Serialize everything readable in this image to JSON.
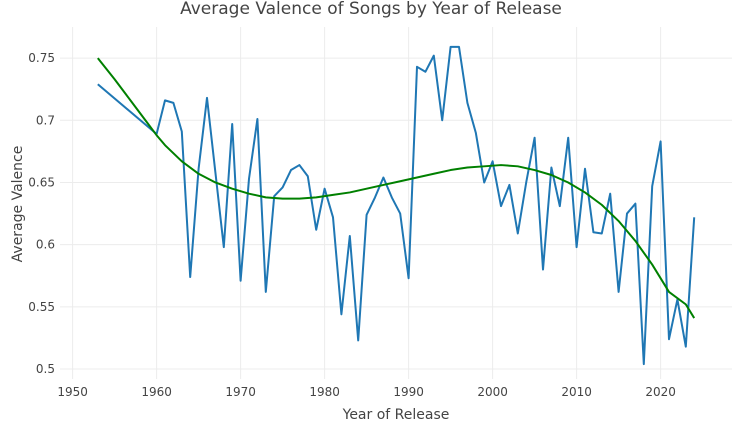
{
  "chart_data": {
    "type": "line",
    "title": "Average Valence of Songs by Year of Release",
    "xlabel": "Year of Release",
    "ylabel": "Average Valence",
    "xlim": [
      1948.5,
      2028.5
    ],
    "ylim": [
      0.492,
      0.775
    ],
    "x_ticks": [
      1950,
      1960,
      1970,
      1980,
      1990,
      2000,
      2010,
      2020
    ],
    "y_ticks": [
      0.5,
      0.55,
      0.6,
      0.65,
      0.7,
      0.75
    ],
    "y_tick_labels": [
      "0.5",
      "0.55",
      "0.6",
      "0.65",
      "0.7",
      "0.75"
    ],
    "grid": true,
    "legend": "none",
    "series": [
      {
        "color": "#1f77b4",
        "x": [
          1953,
          1960,
          1961,
          1962,
          1963,
          1964,
          1965,
          1966,
          1967,
          1968,
          1969,
          1970,
          1971,
          1972,
          1973,
          1974,
          1975,
          1976,
          1977,
          1978,
          1979,
          1980,
          1981,
          1982,
          1983,
          1984,
          1985,
          1986,
          1987,
          1988,
          1989,
          1990,
          1991,
          1992,
          1993,
          1994,
          1995,
          1996,
          1997,
          1998,
          1999,
          2000,
          2001,
          2002,
          2003,
          2004,
          2005,
          2006,
          2007,
          2008,
          2009,
          2010,
          2011,
          2012,
          2013,
          2014,
          2015,
          2016,
          2017,
          2018,
          2019,
          2020,
          2021,
          2022,
          2023,
          2024
        ],
        "y": [
          0.729,
          0.689,
          0.716,
          0.714,
          0.691,
          0.574,
          0.661,
          0.718,
          0.658,
          0.598,
          0.697,
          0.571,
          0.653,
          0.701,
          0.562,
          0.639,
          0.646,
          0.66,
          0.664,
          0.655,
          0.612,
          0.645,
          0.622,
          0.544,
          0.607,
          0.523,
          0.624,
          0.638,
          0.654,
          0.638,
          0.625,
          0.573,
          0.743,
          0.739,
          0.752,
          0.7,
          0.759,
          0.759,
          0.714,
          0.69,
          0.65,
          0.667,
          0.631,
          0.648,
          0.609,
          0.65,
          0.686,
          0.58,
          0.662,
          0.631,
          0.686,
          0.598,
          0.661,
          0.61,
          0.609,
          0.641,
          0.562,
          0.625,
          0.633,
          0.504,
          0.647,
          0.683,
          0.524,
          0.556,
          0.518,
          0.622
        ]
      },
      {
        "color": "#008000",
        "x": [
          1953,
          1955,
          1957,
          1959,
          1960,
          1961,
          1963,
          1965,
          1967,
          1969,
          1971,
          1973,
          1975,
          1977,
          1979,
          1981,
          1983,
          1985,
          1987,
          1989,
          1991,
          1993,
          1995,
          1997,
          1999,
          2001,
          2003,
          2005,
          2007,
          2009,
          2011,
          2013,
          2015,
          2017,
          2019,
          2021,
          2023,
          2024
        ],
        "y": [
          0.75,
          0.733,
          0.715,
          0.697,
          0.688,
          0.68,
          0.667,
          0.657,
          0.65,
          0.645,
          0.641,
          0.638,
          0.637,
          0.637,
          0.638,
          0.64,
          0.642,
          0.645,
          0.648,
          0.651,
          0.654,
          0.657,
          0.66,
          0.662,
          0.663,
          0.664,
          0.663,
          0.66,
          0.656,
          0.65,
          0.642,
          0.632,
          0.619,
          0.603,
          0.584,
          0.562,
          0.552,
          0.541
        ]
      }
    ]
  }
}
